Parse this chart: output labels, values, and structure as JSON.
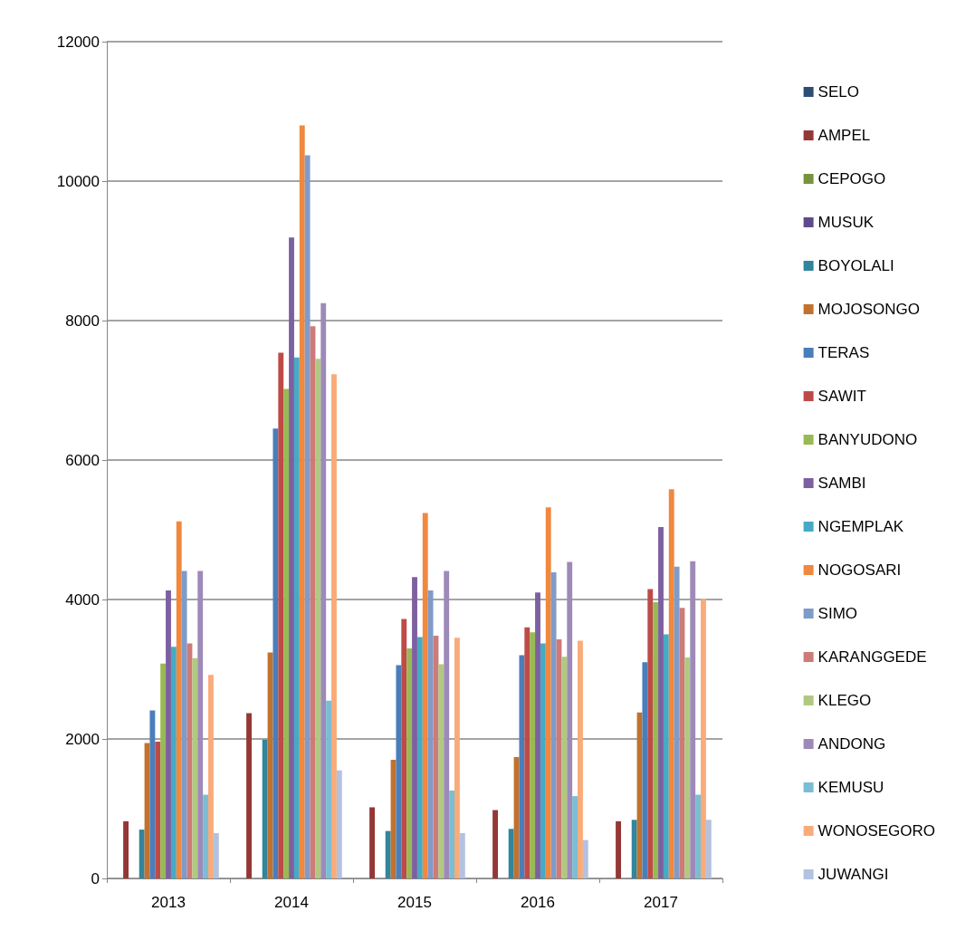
{
  "chart_data": {
    "type": "bar",
    "categories": [
      "2013",
      "2014",
      "2015",
      "2016",
      "2017"
    ],
    "ylim": [
      0,
      12000
    ],
    "yticks": [
      0,
      2000,
      4000,
      6000,
      8000,
      10000,
      12000
    ],
    "grid": "y",
    "legend": "right",
    "series": [
      {
        "name": "SELO",
        "color": "#2c4d75",
        "values": [
          0,
          0,
          0,
          0,
          0
        ]
      },
      {
        "name": "AMPEL",
        "color": "#953735",
        "values": [
          820,
          2370,
          1020,
          980,
          820
        ]
      },
      {
        "name": "CEPOGO",
        "color": "#77933c",
        "values": [
          0,
          0,
          0,
          0,
          0
        ]
      },
      {
        "name": "MUSUK",
        "color": "#5f4b8b",
        "values": [
          0,
          0,
          0,
          0,
          0
        ]
      },
      {
        "name": "BOYOLALI",
        "color": "#31859c",
        "values": [
          700,
          1990,
          680,
          710,
          840
        ]
      },
      {
        "name": "MOJOSONGO",
        "color": "#c0722e",
        "values": [
          1940,
          3240,
          1700,
          1740,
          2380
        ]
      },
      {
        "name": "TERAS",
        "color": "#4a7ebb",
        "values": [
          2410,
          6450,
          3060,
          3200,
          3100
        ]
      },
      {
        "name": "SAWIT",
        "color": "#be4b48",
        "values": [
          1960,
          7540,
          3720,
          3600,
          4150
        ]
      },
      {
        "name": "BANYUDONO",
        "color": "#98b954",
        "values": [
          3080,
          7020,
          3300,
          3530,
          3960
        ]
      },
      {
        "name": "SAMBI",
        "color": "#7d60a0",
        "values": [
          4130,
          9190,
          4320,
          4100,
          5040
        ]
      },
      {
        "name": "NGEMPLAK",
        "color": "#46aac5",
        "values": [
          3320,
          7470,
          3460,
          3370,
          3500
        ]
      },
      {
        "name": "NOGOSARI",
        "color": "#f0883e",
        "values": [
          5120,
          10800,
          5240,
          5320,
          5580
        ]
      },
      {
        "name": "SIMO",
        "color": "#7f9bc9",
        "values": [
          4410,
          10370,
          4130,
          4390,
          4470
        ]
      },
      {
        "name": "KARANGGEDE",
        "color": "#cd7b79",
        "values": [
          3370,
          7920,
          3480,
          3430,
          3880
        ]
      },
      {
        "name": "KLEGO",
        "color": "#b0c97f",
        "values": [
          3160,
          7450,
          3070,
          3180,
          3170
        ]
      },
      {
        "name": "ANDONG",
        "color": "#9e8ab9",
        "values": [
          4410,
          8250,
          4410,
          4540,
          4550
        ]
      },
      {
        "name": "KEMUSU",
        "color": "#79bed2",
        "values": [
          1200,
          2550,
          1260,
          1180,
          1200
        ]
      },
      {
        "name": "WONOSEGORO",
        "color": "#f9ab79",
        "values": [
          2920,
          7230,
          3450,
          3410,
          4010
        ]
      },
      {
        "name": "JUWANGI",
        "color": "#b3c2e0",
        "values": [
          650,
          1550,
          650,
          550,
          840
        ]
      }
    ]
  }
}
